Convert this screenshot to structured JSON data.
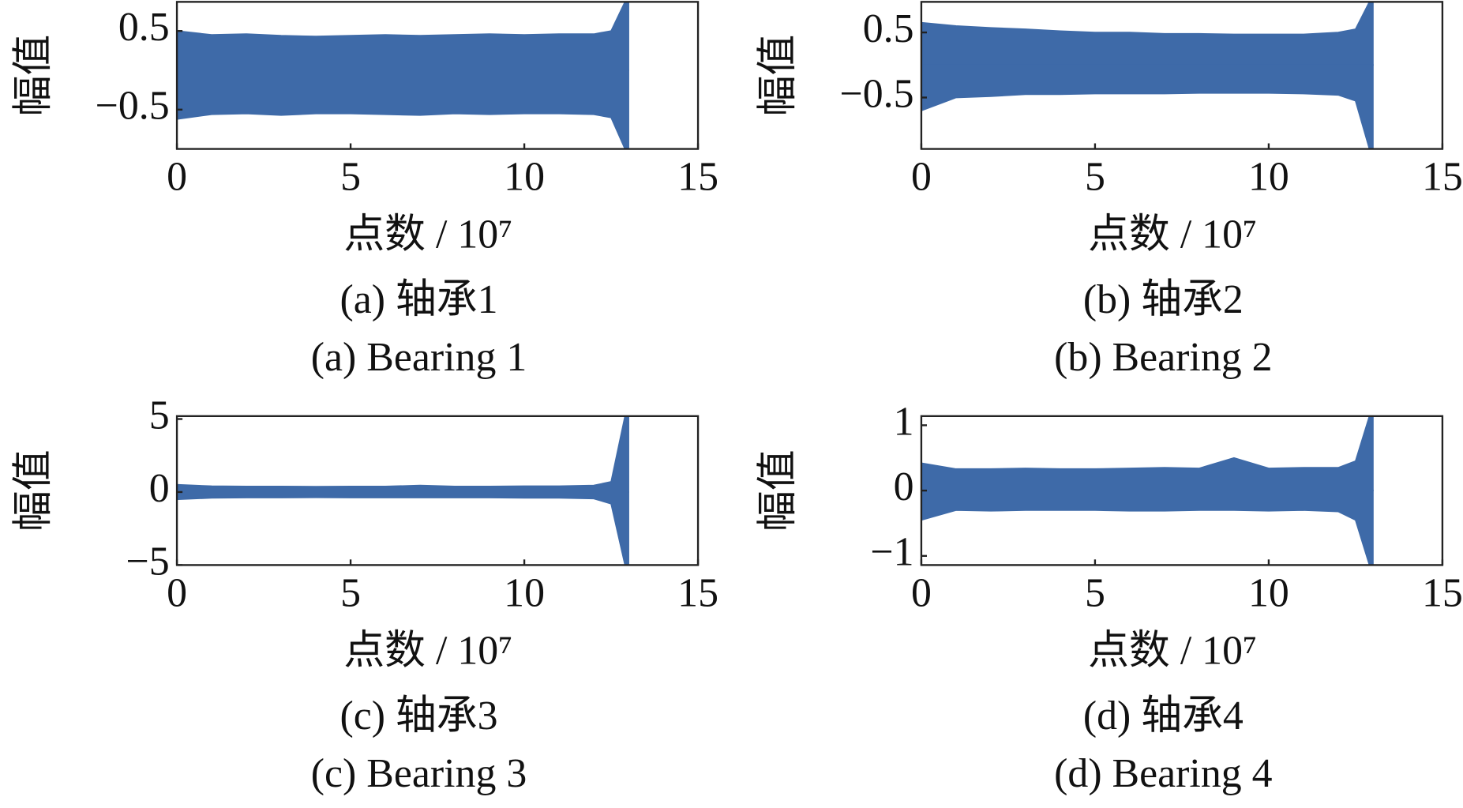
{
  "chart_data": [
    {
      "type": "band",
      "ylabel": "幅值",
      "xlabel": "点数 / 10⁷",
      "caption": "(a) 轴承1",
      "caption_en": "(a) Bearing 1",
      "color": "#3e6aa8",
      "x": [
        0,
        1,
        2,
        3,
        4,
        5,
        6,
        7,
        8,
        9,
        10,
        11,
        12,
        12.5,
        12.9,
        13
      ],
      "upper": [
        0.5,
        0.45,
        0.46,
        0.44,
        0.43,
        0.44,
        0.45,
        0.44,
        0.45,
        0.46,
        0.45,
        0.46,
        0.46,
        0.5,
        0.87,
        0.87
      ],
      "lower": [
        -0.62,
        -0.56,
        -0.55,
        -0.57,
        -0.55,
        -0.55,
        -0.56,
        -0.57,
        -0.55,
        -0.56,
        -0.55,
        -0.55,
        -0.56,
        -0.6,
        -1.0,
        -1.0
      ],
      "xlim": [
        0,
        15
      ],
      "xticks": [
        0,
        5,
        10,
        15
      ],
      "ylim": [
        -1.0,
        0.87
      ],
      "yticks": [
        {
          "value": -0.5,
          "label": "−0.5"
        },
        0.5
      ]
    },
    {
      "type": "band",
      "ylabel": "幅值",
      "xlabel": "点数 / 10⁷",
      "caption": "(b) 轴承2",
      "caption_en": "(b) Bearing 2",
      "color": "#3e6aa8",
      "x": [
        0,
        1,
        2,
        3,
        4,
        5,
        6,
        7,
        8,
        9,
        10,
        11,
        12,
        12.5,
        12.9,
        13
      ],
      "upper": [
        0.65,
        0.6,
        0.57,
        0.55,
        0.52,
        0.5,
        0.5,
        0.48,
        0.48,
        0.47,
        0.47,
        0.47,
        0.5,
        0.55,
        0.97,
        0.97
      ],
      "lower": [
        -0.7,
        -0.5,
        -0.48,
        -0.45,
        -0.45,
        -0.44,
        -0.44,
        -0.44,
        -0.43,
        -0.43,
        -0.43,
        -0.44,
        -0.46,
        -0.55,
        -1.29,
        -1.29
      ],
      "xlim": [
        0,
        15
      ],
      "xticks": [
        0,
        5,
        10,
        15
      ],
      "ylim": [
        -1.29,
        0.97
      ],
      "yticks": [
        {
          "value": -0.5,
          "label": "−0.5"
        },
        0.5
      ]
    },
    {
      "type": "band",
      "ylabel": "幅值",
      "xlabel": "点数 / 10⁷",
      "caption": "(c) 轴承3",
      "caption_en": "(c) Bearing 3",
      "color": "#3e6aa8",
      "x": [
        0,
        1,
        2,
        3,
        4,
        5,
        6,
        7,
        8,
        9,
        10,
        11,
        12,
        12.5,
        12.9,
        13
      ],
      "upper": [
        0.5,
        0.4,
        0.38,
        0.38,
        0.37,
        0.38,
        0.38,
        0.45,
        0.38,
        0.38,
        0.4,
        0.4,
        0.45,
        0.7,
        5.2,
        5.2
      ],
      "lower": [
        -0.5,
        -0.4,
        -0.38,
        -0.38,
        -0.37,
        -0.38,
        -0.38,
        -0.38,
        -0.38,
        -0.38,
        -0.4,
        -0.4,
        -0.45,
        -0.8,
        -5.0,
        -5.0
      ],
      "xlim": [
        0,
        15
      ],
      "xticks": [
        0,
        5,
        10,
        15
      ],
      "ylim": [
        -5.0,
        5.2
      ],
      "yticks": [
        {
          "value": -5,
          "label": "−5"
        },
        0,
        5
      ]
    },
    {
      "type": "band",
      "ylabel": "幅值",
      "xlabel": "点数 / 10⁷",
      "caption": "(d) 轴承4",
      "caption_en": "(d) Bearing 4",
      "color": "#3e6aa8",
      "x": [
        0,
        1,
        2,
        3,
        4,
        5,
        6,
        7,
        8,
        9,
        10,
        11,
        12,
        12.5,
        12.9,
        13
      ],
      "upper": [
        0.42,
        0.33,
        0.33,
        0.34,
        0.33,
        0.33,
        0.34,
        0.35,
        0.34,
        0.5,
        0.34,
        0.35,
        0.35,
        0.45,
        1.14,
        1.14
      ],
      "lower": [
        -0.45,
        -0.3,
        -0.31,
        -0.3,
        -0.3,
        -0.3,
        -0.31,
        -0.31,
        -0.3,
        -0.3,
        -0.31,
        -0.3,
        -0.32,
        -0.45,
        -1.14,
        -1.14
      ],
      "xlim": [
        0,
        15
      ],
      "xticks": [
        0,
        5,
        10,
        15
      ],
      "ylim": [
        -1.14,
        1.14
      ],
      "yticks": [
        {
          "value": -1,
          "label": "−1"
        },
        0,
        1
      ]
    }
  ]
}
